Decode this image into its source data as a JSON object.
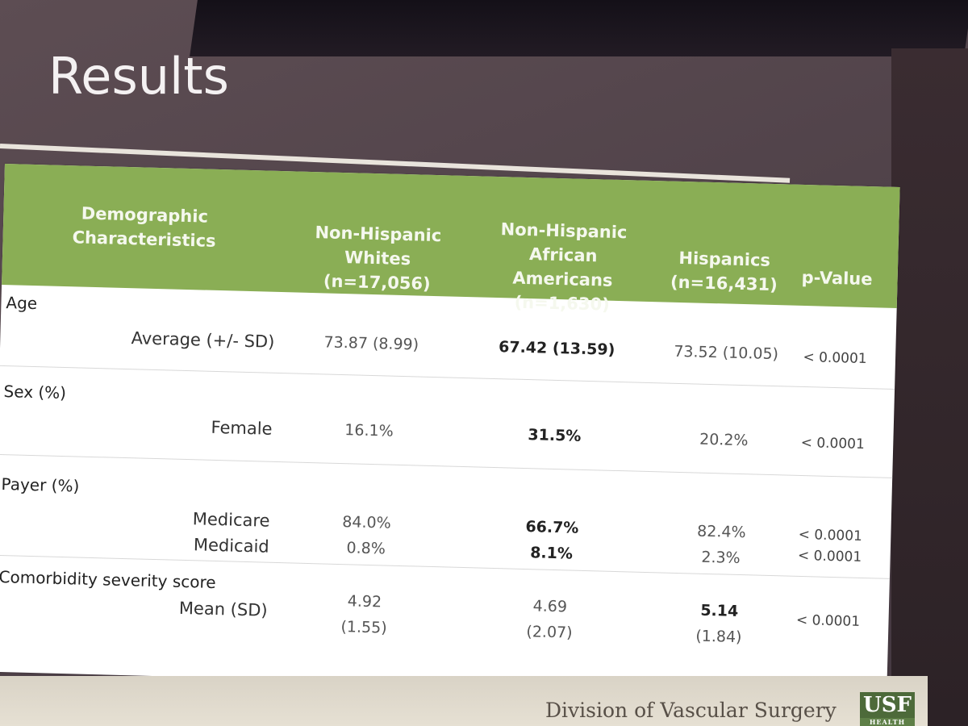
{
  "slide": {
    "title": "Results",
    "footer": "Division of Vascular Surgery",
    "logo": "USF",
    "logo_sub": "HEALTH"
  },
  "table": {
    "headers": {
      "demo_line1": "Demographic",
      "demo_line2": "Characteristics",
      "whites_line1": "Non-Hispanic",
      "whites_line2": "Whites (n=17,056)",
      "aa_line1": "Non-Hispanic",
      "aa_line2": "African Americans",
      "aa_line3": "(n=1,630)",
      "hisp_line1": "Hispanics",
      "hisp_line2": "(n=16,431)",
      "pvalue": "p-Value"
    },
    "age": {
      "label": "Age",
      "sub": "Average (+/- SD)",
      "whites": "73.87 (8.99)",
      "aa": "67.42 (13.59)",
      "hisp": "73.52 (10.05)",
      "p": "< 0.0001"
    },
    "sex": {
      "label": "Sex (%)",
      "sub": "Female",
      "whites": "16.1%",
      "aa": "31.5%",
      "hisp": "20.2%",
      "p": "< 0.0001"
    },
    "payer": {
      "label": "Payer (%)",
      "sub1": "Medicare",
      "sub2": "Medicaid",
      "whites1": "84.0%",
      "whites2": "0.8%",
      "aa1": "66.7%",
      "aa2": "8.1%",
      "hisp1": "82.4%",
      "hisp2": "2.3%",
      "p1": "< 0.0001",
      "p2": "< 0.0001"
    },
    "comorbidity": {
      "label": "Comorbidity severity score",
      "sub": "Mean (SD)",
      "whites_mean": "4.92",
      "whites_sd": "(1.55)",
      "aa_mean": "4.69",
      "aa_sd": "(2.07)",
      "hisp_mean": "5.14",
      "hisp_sd": "(1.84)",
      "p": "< 0.0001"
    }
  },
  "colors": {
    "header_green": "#8aae55",
    "logo_green": "#4d6a3a"
  }
}
